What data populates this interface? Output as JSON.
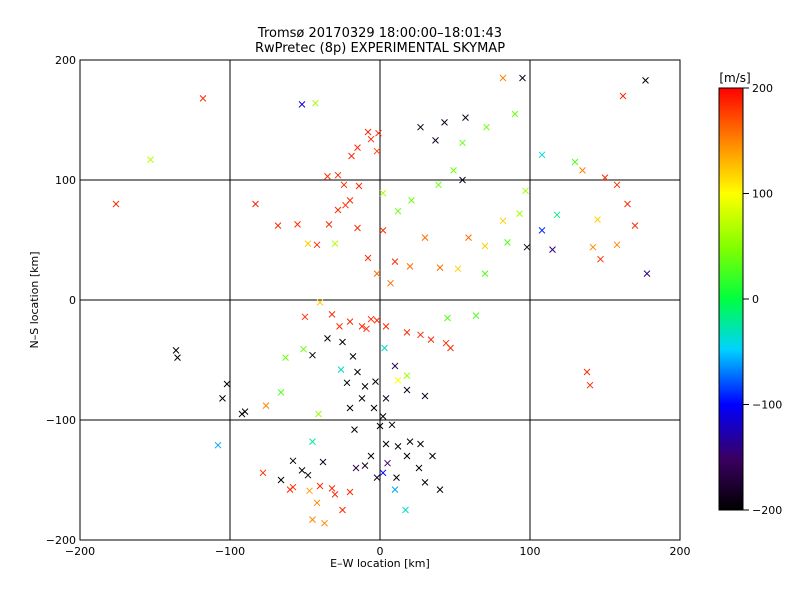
{
  "chart_data": {
    "type": "scatter",
    "title": "Tromsø 20170329 18:00:00–18:01:43",
    "subtitle": "RwPretec (8p) EXPERIMENTAL SKYMAP",
    "xlabel": "E–W location [km]",
    "ylabel": "N–S location [km]",
    "xlim": [
      -200,
      200
    ],
    "ylim": [
      -200,
      200
    ],
    "xticks": [
      -200,
      -100,
      0,
      100,
      200
    ],
    "yticks": [
      -200,
      -100,
      0,
      100,
      200
    ],
    "grid": true,
    "colorbar": {
      "label": "[m/s]",
      "min": -200,
      "max": 200,
      "ticks": [
        200,
        100,
        0,
        -100,
        -200
      ]
    },
    "series": [
      {
        "marker": "x",
        "points": [
          [
            -118,
            168,
            185
          ],
          [
            -153,
            117,
            70
          ],
          [
            -52,
            163,
            -115
          ],
          [
            -43,
            164,
            60
          ],
          [
            43,
            148,
            -185
          ],
          [
            57,
            152,
            -185
          ],
          [
            82,
            185,
            150
          ],
          [
            95,
            185,
            -185
          ],
          [
            177,
            183,
            -200
          ],
          [
            162,
            170,
            185
          ],
          [
            -176,
            80,
            185
          ],
          [
            -83,
            80,
            185
          ],
          [
            -68,
            62,
            185
          ],
          [
            -55,
            63,
            185
          ],
          [
            -42,
            46,
            185
          ],
          [
            -34,
            63,
            185
          ],
          [
            -28,
            75,
            185
          ],
          [
            -20,
            83,
            185
          ],
          [
            -14,
            95,
            185
          ],
          [
            -24,
            96,
            185
          ],
          [
            -35,
            103,
            185
          ],
          [
            -28,
            104,
            185
          ],
          [
            -19,
            120,
            185
          ],
          [
            -15,
            127,
            185
          ],
          [
            -8,
            140,
            185
          ],
          [
            -1,
            139,
            185
          ],
          [
            -6,
            134,
            185
          ],
          [
            -2,
            124,
            175
          ],
          [
            27,
            144,
            -185
          ],
          [
            37,
            133,
            -185
          ],
          [
            55,
            100,
            -185
          ],
          [
            -50,
            -14,
            185
          ],
          [
            -40,
            -2,
            120
          ],
          [
            -32,
            -12,
            185
          ],
          [
            -27,
            -22,
            185
          ],
          [
            -20,
            -18,
            185
          ],
          [
            -12,
            -22,
            185
          ],
          [
            -6,
            -16,
            185
          ],
          [
            -9,
            -24,
            185
          ],
          [
            -2,
            -17,
            185
          ],
          [
            4,
            -22,
            185
          ],
          [
            18,
            -27,
            185
          ],
          [
            27,
            -29,
            185
          ],
          [
            34,
            -33,
            185
          ],
          [
            44,
            -36,
            185
          ],
          [
            47,
            -40,
            185
          ],
          [
            -135,
            -48,
            -200
          ],
          [
            -102,
            -70,
            -200
          ],
          [
            -105,
            -82,
            -200
          ],
          [
            -90,
            -93,
            -200
          ],
          [
            -92,
            -95,
            -200
          ],
          [
            -76,
            -88,
            150
          ],
          [
            -66,
            -77,
            30
          ],
          [
            -45,
            -46,
            -200
          ],
          [
            -35,
            -32,
            -200
          ],
          [
            -25,
            -35,
            -200
          ],
          [
            -18,
            -47,
            -200
          ],
          [
            -15,
            -60,
            -200
          ],
          [
            -22,
            -69,
            -200
          ],
          [
            -10,
            -72,
            -200
          ],
          [
            -3,
            -68,
            -200
          ],
          [
            -12,
            -82,
            -200
          ],
          [
            -20,
            -90,
            -200
          ],
          [
            -17,
            -108,
            -200
          ],
          [
            -4,
            -90,
            -200
          ],
          [
            0,
            -105,
            -200
          ],
          [
            2,
            -97,
            -200
          ],
          [
            8,
            -104,
            -200
          ],
          [
            4,
            -120,
            -200
          ],
          [
            18,
            -130,
            -200
          ],
          [
            12,
            -122,
            -200
          ],
          [
            26,
            -140,
            -200
          ],
          [
            30,
            -152,
            -200
          ],
          [
            35,
            -130,
            -200
          ],
          [
            20,
            -118,
            -200
          ],
          [
            27,
            -120,
            -200
          ],
          [
            5,
            -136,
            -150
          ],
          [
            -6,
            -130,
            -200
          ],
          [
            -10,
            -138,
            -185
          ],
          [
            -16,
            -140,
            -160
          ],
          [
            -2,
            -148,
            -185
          ],
          [
            11,
            -148,
            -200
          ],
          [
            40,
            -158,
            -200
          ],
          [
            -58,
            -134,
            -200
          ],
          [
            -52,
            -142,
            -200
          ],
          [
            -66,
            -150,
            -200
          ],
          [
            -60,
            -158,
            185
          ],
          [
            -58,
            -156,
            185
          ],
          [
            -78,
            -144,
            185
          ],
          [
            -48,
            -146,
            -200
          ],
          [
            -40,
            -155,
            185
          ],
          [
            -32,
            -157,
            185
          ],
          [
            -47,
            -159,
            140
          ],
          [
            -42,
            -169,
            150
          ],
          [
            -30,
            -162,
            185
          ],
          [
            -20,
            -160,
            185
          ],
          [
            -25,
            -175,
            185
          ],
          [
            -45,
            -183,
            150
          ],
          [
            -37,
            -186,
            150
          ],
          [
            2,
            -144,
            -100
          ],
          [
            10,
            -158,
            -60
          ],
          [
            17,
            -175,
            -35
          ],
          [
            3,
            -40,
            -35
          ],
          [
            10,
            -55,
            -160
          ],
          [
            -63,
            -48,
            40
          ],
          [
            -51,
            -41,
            40
          ],
          [
            -26,
            -58,
            -35
          ],
          [
            4,
            -82,
            -185
          ],
          [
            18,
            -75,
            -185
          ],
          [
            30,
            -80,
            -185
          ],
          [
            12,
            -67,
            100
          ],
          [
            18,
            -63,
            60
          ],
          [
            -45,
            -118,
            -20
          ],
          [
            -38,
            -135,
            -185
          ],
          [
            45,
            -15,
            30
          ],
          [
            64,
            -13,
            30
          ],
          [
            70,
            22,
            30
          ],
          [
            85,
            48,
            30
          ],
          [
            93,
            72,
            60
          ],
          [
            97,
            91,
            60
          ],
          [
            82,
            66,
            120
          ],
          [
            70,
            45,
            120
          ],
          [
            52,
            26,
            120
          ],
          [
            40,
            27,
            160
          ],
          [
            59,
            52,
            160
          ],
          [
            30,
            52,
            160
          ],
          [
            20,
            28,
            160
          ],
          [
            7,
            14,
            160
          ],
          [
            -2,
            22,
            160
          ],
          [
            10,
            32,
            185
          ],
          [
            -8,
            35,
            185
          ],
          [
            2,
            58,
            185
          ],
          [
            -15,
            60,
            185
          ],
          [
            -23,
            79,
            185
          ],
          [
            -48,
            47,
            120
          ],
          [
            -30,
            47,
            70
          ],
          [
            2,
            89,
            60
          ],
          [
            12,
            74,
            40
          ],
          [
            21,
            83,
            40
          ],
          [
            39,
            96,
            40
          ],
          [
            49,
            108,
            40
          ],
          [
            55,
            131,
            40
          ],
          [
            71,
            144,
            40
          ],
          [
            90,
            155,
            40
          ],
          [
            108,
            121,
            -40
          ],
          [
            130,
            115,
            30
          ],
          [
            135,
            108,
            150
          ],
          [
            118,
            71,
            -15
          ],
          [
            108,
            58,
            -90
          ],
          [
            115,
            42,
            -140
          ],
          [
            98,
            44,
            -185
          ],
          [
            145,
            67,
            120
          ],
          [
            142,
            44,
            150
          ],
          [
            170,
            62,
            185
          ],
          [
            178,
            22,
            -140
          ],
          [
            147,
            34,
            185
          ],
          [
            158,
            46,
            150
          ],
          [
            165,
            80,
            185
          ],
          [
            158,
            96,
            185
          ],
          [
            150,
            102,
            185
          ],
          [
            138,
            -60,
            185
          ],
          [
            140,
            -71,
            185
          ],
          [
            -136,
            -42,
            -200
          ],
          [
            -108,
            -121,
            -60
          ],
          [
            -41,
            -95,
            60
          ]
        ]
      },
      {
        "marker": "dot",
        "points": []
      }
    ]
  }
}
